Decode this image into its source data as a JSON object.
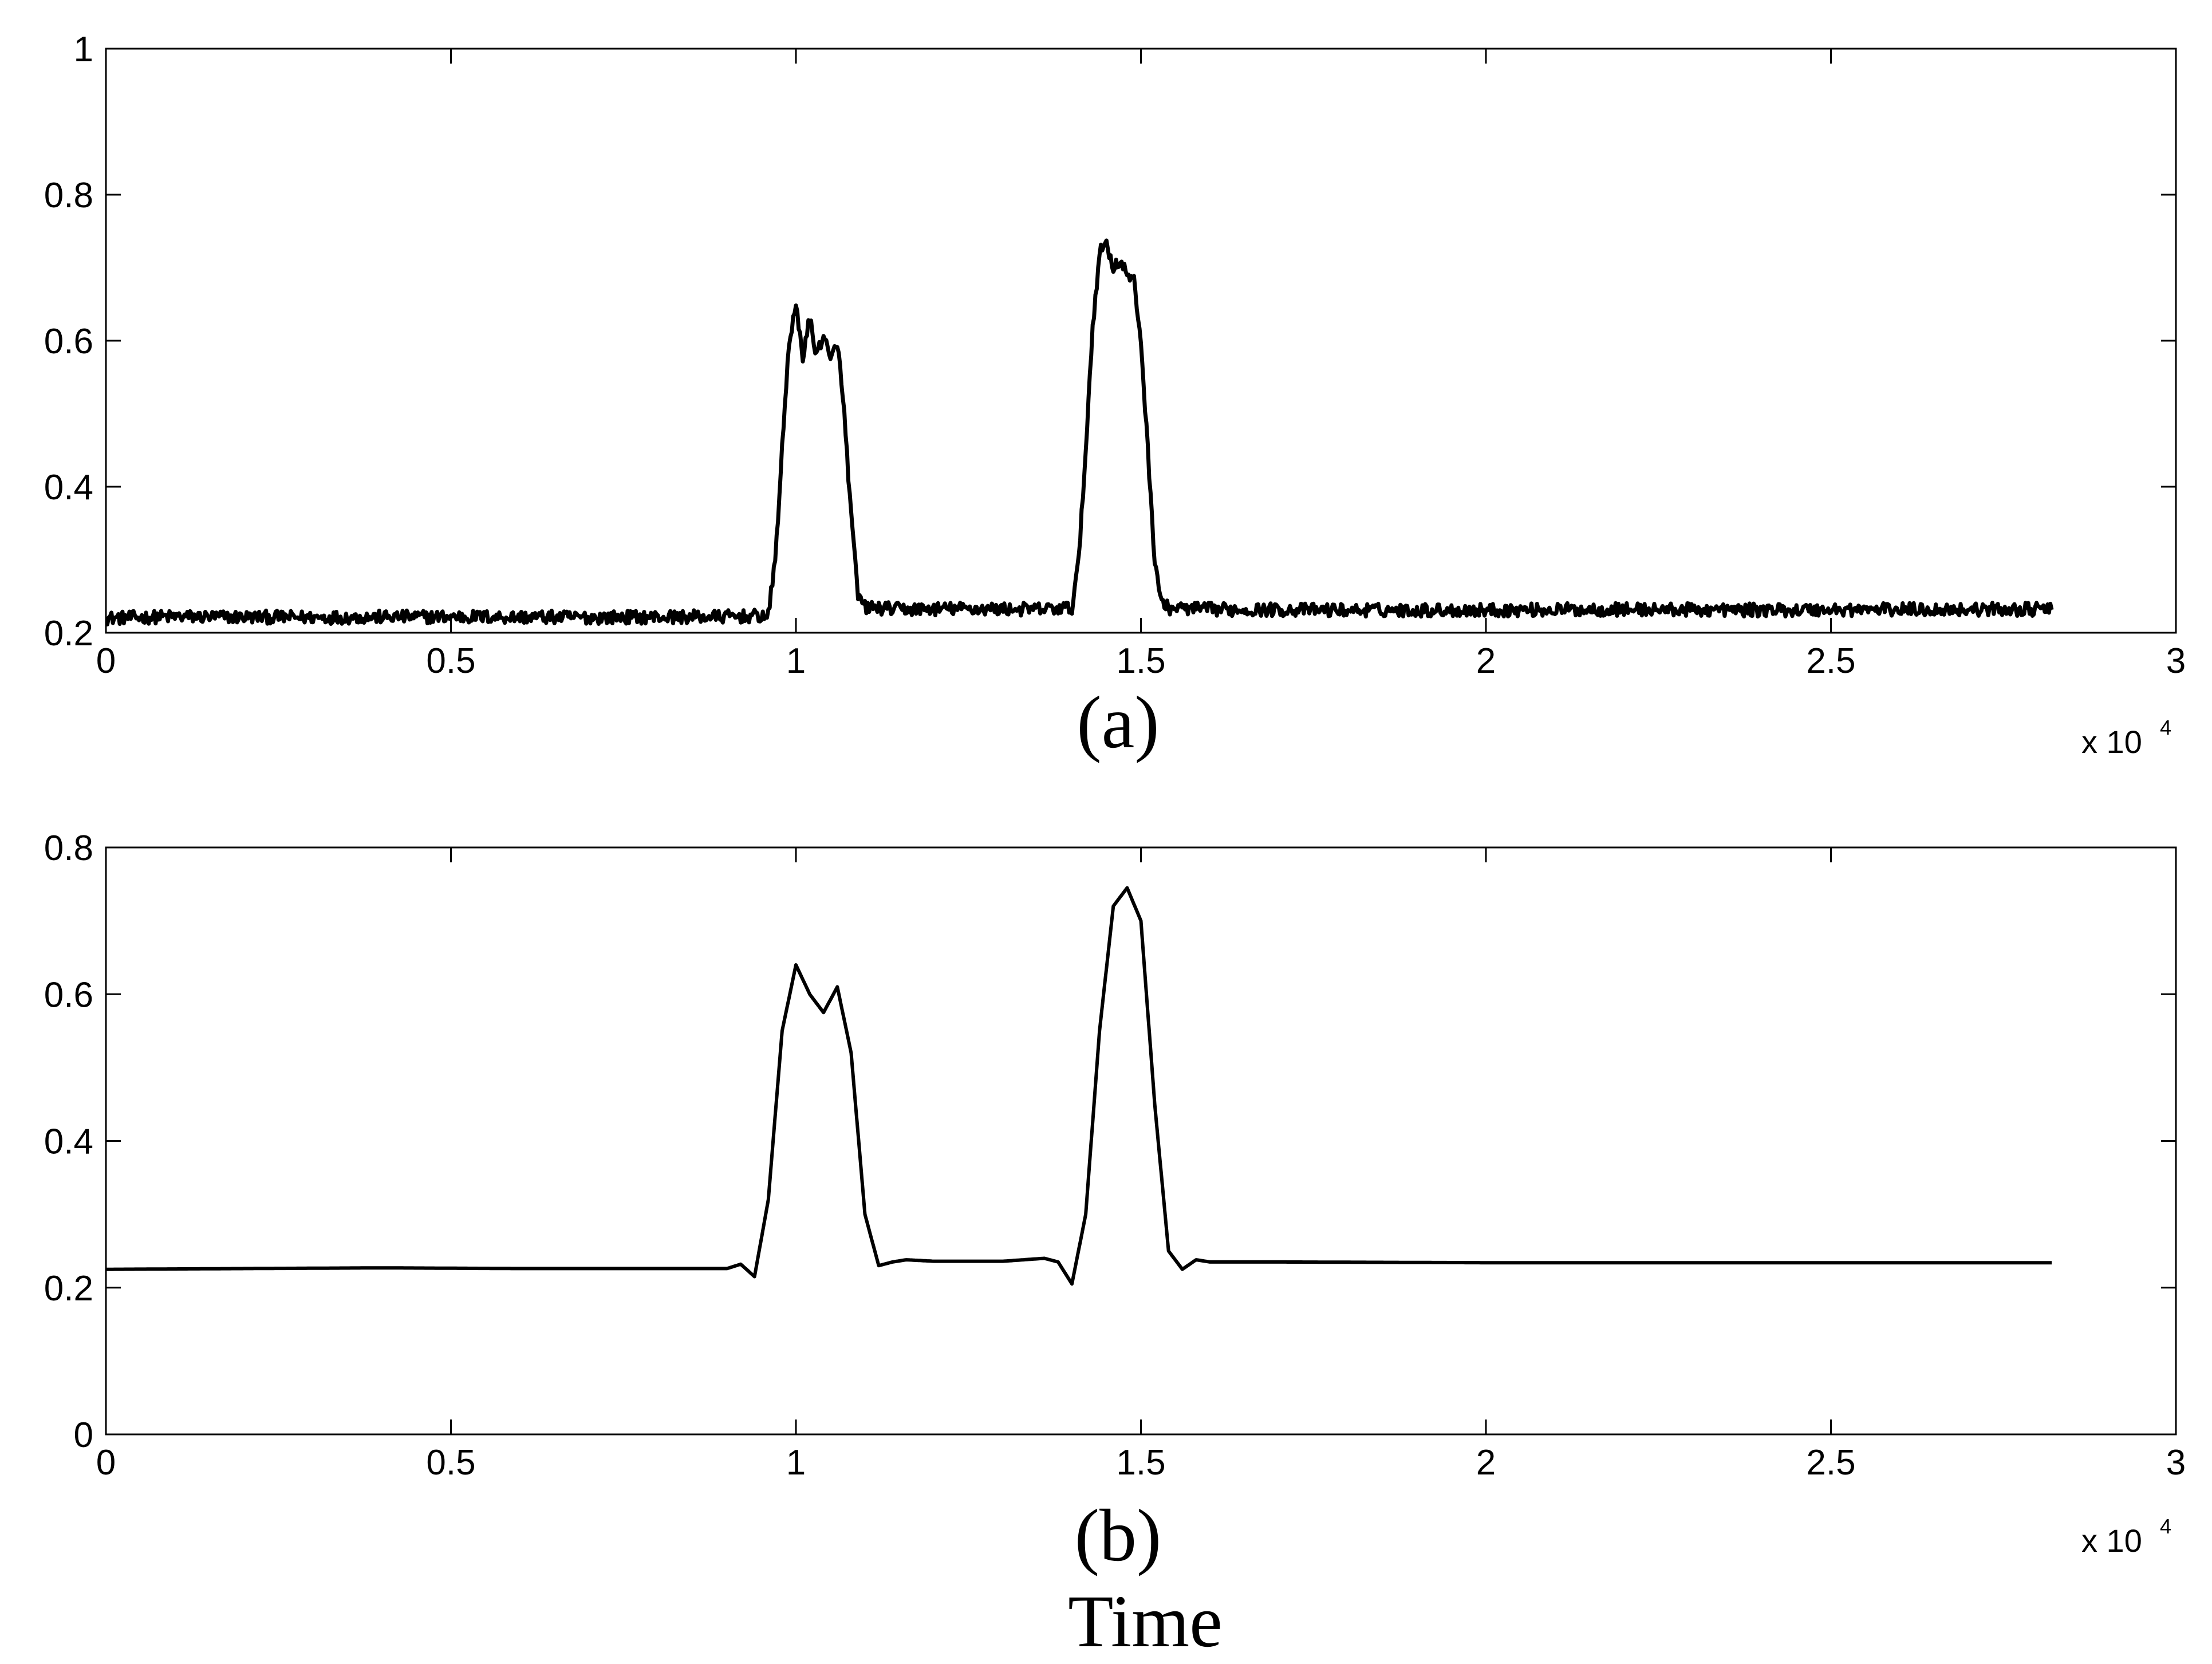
{
  "chart_data": [
    {
      "type": "line",
      "panel_label": "(a)",
      "xlim": [
        0,
        30000
      ],
      "ylim": [
        0.2,
        1.0
      ],
      "x_ticks": [
        0,
        5000,
        10000,
        15000,
        20000,
        25000,
        30000
      ],
      "x_tick_labels": [
        "0",
        "0.5",
        "1",
        "1.5",
        "2",
        "2.5",
        "3"
      ],
      "y_ticks": [
        0.2,
        0.4,
        0.6,
        0.8,
        1.0
      ],
      "y_tick_labels": [
        "0.2",
        "0.4",
        "0.6",
        "0.8",
        "1"
      ],
      "x_exponent_label": "x 10",
      "x_exponent_power": "4",
      "grid": false,
      "noise": true,
      "series": [
        {
          "color": "#000000",
          "x": [
            0,
            1000,
            3000,
            5000,
            7000,
            9000,
            9600,
            9700,
            9800,
            9900,
            10000,
            10100,
            10200,
            10300,
            10400,
            10500,
            10600,
            10700,
            10800,
            10900,
            11000,
            11500,
            12500,
            13500,
            14000,
            14100,
            14200,
            14300,
            14400,
            14500,
            14600,
            14700,
            14800,
            14900,
            15000,
            15100,
            15200,
            15300,
            15400,
            16000,
            18000,
            20000,
            22000,
            24000,
            26000,
            28200
          ],
          "y": [
            0.22,
            0.222,
            0.221,
            0.222,
            0.221,
            0.222,
            0.223,
            0.3,
            0.45,
            0.6,
            0.645,
            0.58,
            0.63,
            0.58,
            0.61,
            0.57,
            0.6,
            0.5,
            0.36,
            0.25,
            0.235,
            0.232,
            0.233,
            0.232,
            0.234,
            0.3,
            0.45,
            0.62,
            0.72,
            0.735,
            0.7,
            0.71,
            0.69,
            0.68,
            0.6,
            0.45,
            0.3,
            0.24,
            0.234,
            0.232,
            0.231,
            0.231,
            0.232,
            0.231,
            0.232,
            0.232
          ]
        }
      ]
    },
    {
      "type": "line",
      "panel_label": "(b)",
      "xlim": [
        0,
        30000
      ],
      "ylim": [
        0,
        0.8
      ],
      "x_ticks": [
        0,
        5000,
        10000,
        15000,
        20000,
        25000,
        30000
      ],
      "x_tick_labels": [
        "0",
        "0.5",
        "1",
        "1.5",
        "2",
        "2.5",
        "3"
      ],
      "y_ticks": [
        0,
        0.2,
        0.4,
        0.6,
        0.8
      ],
      "y_tick_labels": [
        "0",
        "0.2",
        "0.4",
        "0.6",
        "0.8"
      ],
      "x_exponent_label": "x 10",
      "x_exponent_power": "4",
      "grid": false,
      "noise": false,
      "series": [
        {
          "color": "#000000",
          "x": [
            0,
            2000,
            4000,
            6000,
            8000,
            9000,
            9200,
            9400,
            9600,
            9800,
            10000,
            10200,
            10400,
            10600,
            10800,
            11000,
            11200,
            11400,
            11600,
            12000,
            13000,
            13600,
            13800,
            14000,
            14200,
            14400,
            14600,
            14800,
            15000,
            15200,
            15400,
            15600,
            15800,
            16000,
            17000,
            20000,
            24000,
            28200
          ],
          "y": [
            0.225,
            0.226,
            0.227,
            0.226,
            0.226,
            0.226,
            0.232,
            0.215,
            0.32,
            0.55,
            0.64,
            0.6,
            0.575,
            0.61,
            0.52,
            0.3,
            0.23,
            0.235,
            0.238,
            0.236,
            0.236,
            0.24,
            0.235,
            0.205,
            0.3,
            0.55,
            0.72,
            0.745,
            0.7,
            0.45,
            0.25,
            0.225,
            0.238,
            0.235,
            0.235,
            0.234,
            0.234,
            0.234
          ]
        }
      ]
    }
  ],
  "bottom_label": "Time"
}
